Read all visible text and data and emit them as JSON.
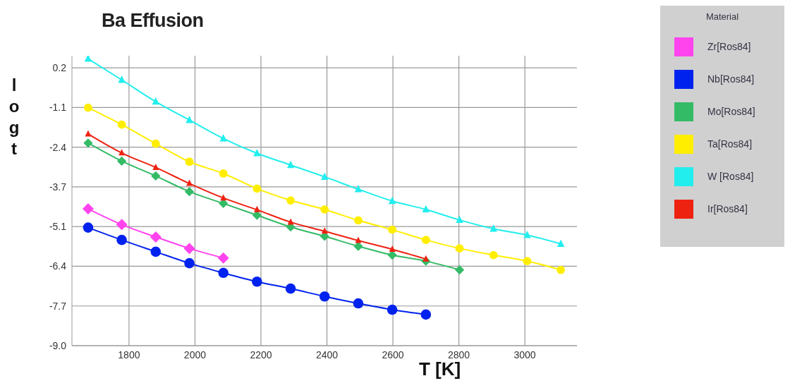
{
  "chart_data": {
    "type": "line",
    "title": "Ba Effusion",
    "xlabel": "T [K]",
    "ylabel": "log t",
    "legend_title": "Material",
    "legend": "top right",
    "grid": true,
    "xlim": [
      1627,
      3158
    ],
    "xticks": [
      1800,
      2000,
      2200,
      2400,
      2600,
      2800,
      3000
    ],
    "ylim": [
      -9.0,
      0.6
    ],
    "yticks": [
      {
        "value": 0.2,
        "label": "0.2"
      },
      {
        "value": -1.114,
        "label": "-1.1"
      },
      {
        "value": -2.429,
        "label": "-2.4"
      },
      {
        "value": -3.743,
        "label": "-3.7"
      },
      {
        "value": -5.057,
        "label": "-5.1"
      },
      {
        "value": -6.371,
        "label": "-6.4"
      },
      {
        "value": -7.686,
        "label": "-7.7"
      },
      {
        "value": -9.0,
        "label": "-9.0"
      }
    ],
    "x": [
      1676,
      1778,
      1881,
      1983,
      2086,
      2188,
      2290,
      2393,
      2495,
      2598,
      2700,
      2802,
      2905,
      3007,
      3109
    ],
    "series": [
      {
        "name": "Zr[Ros84]",
        "color": "#ff44ee",
        "marker": "diamond",
        "values": [
          -4.47,
          -4.99,
          -5.4,
          -5.78,
          -6.1,
          null,
          null,
          null,
          null,
          null,
          null,
          null,
          null,
          null,
          null
        ]
      },
      {
        "name": "Nb[Ros84]",
        "color": "#0022ee",
        "marker": "circle",
        "values": [
          -5.09,
          -5.5,
          -5.89,
          -6.27,
          -6.59,
          -6.88,
          -7.11,
          -7.37,
          -7.6,
          -7.81,
          -7.97,
          null,
          null,
          null,
          null
        ]
      },
      {
        "name": "Mo[Ros84]",
        "color": "#33bb66",
        "marker": "diamond",
        "values": [
          -2.29,
          -2.89,
          -3.38,
          -3.9,
          -4.29,
          -4.68,
          -5.07,
          -5.38,
          -5.71,
          -6.0,
          -6.2,
          -6.49,
          null,
          null,
          null
        ]
      },
      {
        "name": "Ta[Ros84]",
        "color": "#ffee00",
        "marker": "circle",
        "values": [
          -1.12,
          -1.68,
          -2.31,
          -2.91,
          -3.3,
          -3.8,
          -4.19,
          -4.49,
          -4.85,
          -5.16,
          -5.5,
          -5.78,
          -6.0,
          -6.2,
          -6.49
        ]
      },
      {
        "name": "W [Ros84]",
        "color": "#22eeee",
        "marker": "triangle",
        "values": [
          0.5,
          -0.2,
          -0.92,
          -1.53,
          -2.14,
          -2.63,
          -3.02,
          -3.41,
          -3.82,
          -4.21,
          -4.49,
          -4.84,
          -5.13,
          -5.34,
          -5.63
        ]
      },
      {
        "name": "Ir[Ros84]",
        "color": "#ee2211",
        "marker": "triangle",
        "values": [
          -1.99,
          -2.62,
          -3.1,
          -3.63,
          -4.11,
          -4.5,
          -4.91,
          -5.21,
          -5.52,
          -5.81,
          -6.13,
          null,
          null,
          null,
          null
        ]
      }
    ]
  }
}
